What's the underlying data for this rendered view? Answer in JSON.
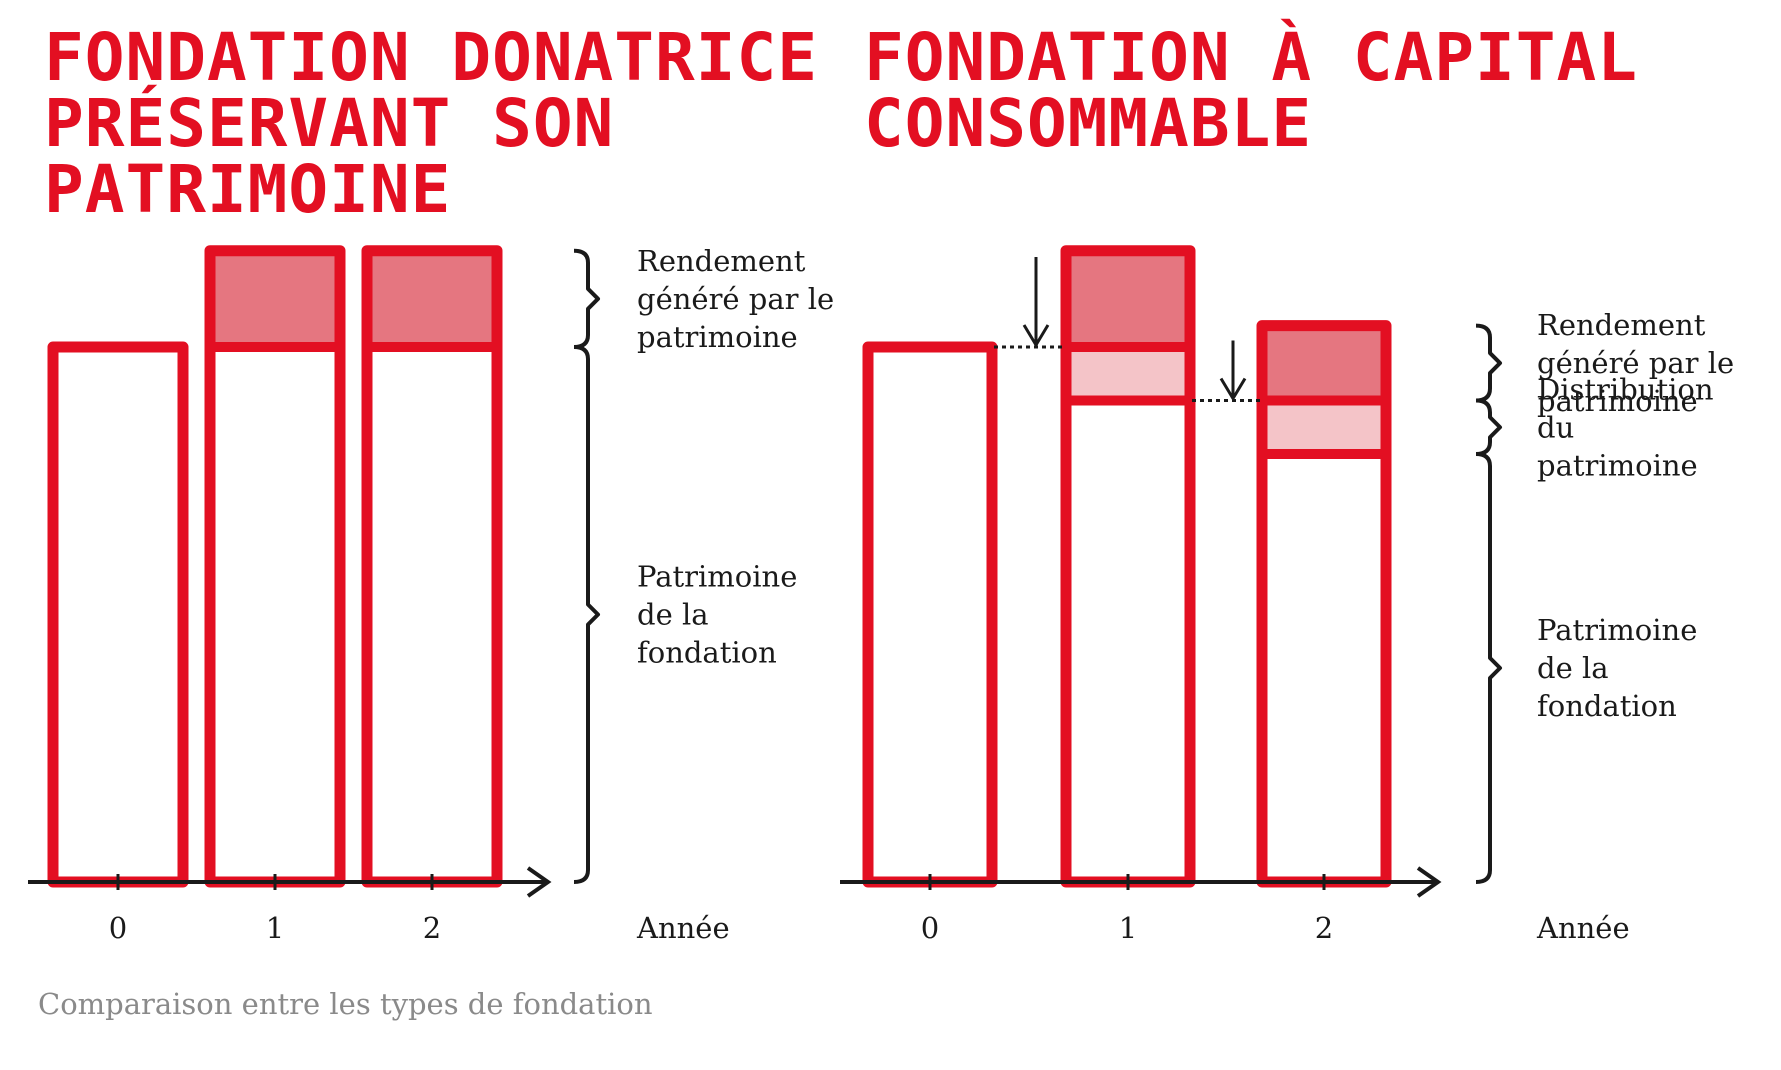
{
  "caption": "Comparaison entre les types de fondation",
  "colors": {
    "outline": "#e30f22",
    "rendement": "#e57680",
    "distribution": "#f4c4c8",
    "ink": "#1a1a1a",
    "caption": "#8a8a8a"
  },
  "chart_data": [
    {
      "type": "bar",
      "stacked": true,
      "title_lines": [
        "FONDATION DONATRICE",
        "PRÉSERVANT SON",
        "PATRIMOINE"
      ],
      "xlabel": "Année",
      "categories": [
        "0",
        "1",
        "2"
      ],
      "series": [
        {
          "name": "Patrimoine de la fondation",
          "values": [
            100,
            100,
            100
          ]
        },
        {
          "name": "Rendement généré par le patrimoine",
          "values": [
            0,
            18,
            18
          ]
        }
      ],
      "ylim": [
        0,
        120
      ],
      "brackets": [
        {
          "lines": [
            "Rendement",
            "généré par le",
            "patrimoine"
          ],
          "from": 100,
          "to": 118
        },
        {
          "lines": [
            "Patrimoine",
            "de la",
            "fondation"
          ],
          "from": 0,
          "to": 100
        }
      ]
    },
    {
      "type": "bar",
      "stacked": true,
      "title_lines": [
        "FONDATION À CAPITAL",
        "CONSOMMABLE"
      ],
      "xlabel": "Année",
      "categories": [
        "0",
        "1",
        "2"
      ],
      "series": [
        {
          "name": "Patrimoine de la fondation",
          "values": [
            100,
            90,
            80
          ]
        },
        {
          "name": "Distribution du patrimoine",
          "values": [
            0,
            10,
            10
          ]
        },
        {
          "name": "Rendement généré par le patrimoine",
          "values": [
            0,
            18,
            14
          ]
        }
      ],
      "ylim": [
        0,
        120
      ],
      "brackets": [
        {
          "lines": [
            "Rendement",
            "généré par le",
            "patrimoine"
          ],
          "from": 90,
          "to": 104
        },
        {
          "lines": [
            "Distribution",
            "du",
            "patrimoine"
          ],
          "from": 80,
          "to": 90
        },
        {
          "lines": [
            "Patrimoine",
            "de la",
            "fondation"
          ],
          "from": 0,
          "to": 80
        }
      ]
    }
  ]
}
